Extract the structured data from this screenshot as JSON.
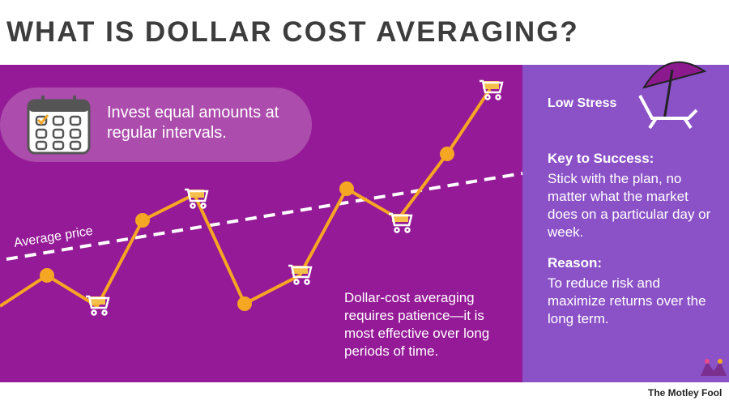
{
  "header": {
    "title": "WHAT IS DOLLAR COST AVERAGING?"
  },
  "chart_panel": {
    "callout": "Invest equal amounts at regular intervals.",
    "line_label": "Average price",
    "note": "Dollar-cost averaging requires patience—it is most effective over long periods of time."
  },
  "side_panel": {
    "stress": "Low Stress",
    "key_heading": "Key to Success:",
    "key_text": "Stick with the plan, no matter what the market does on a particular day or week.",
    "reason_heading": "Reason:",
    "reason_text": "To reduce risk and maximize returns over the long term."
  },
  "footer": {
    "brand": "The Motley Fool"
  }
}
